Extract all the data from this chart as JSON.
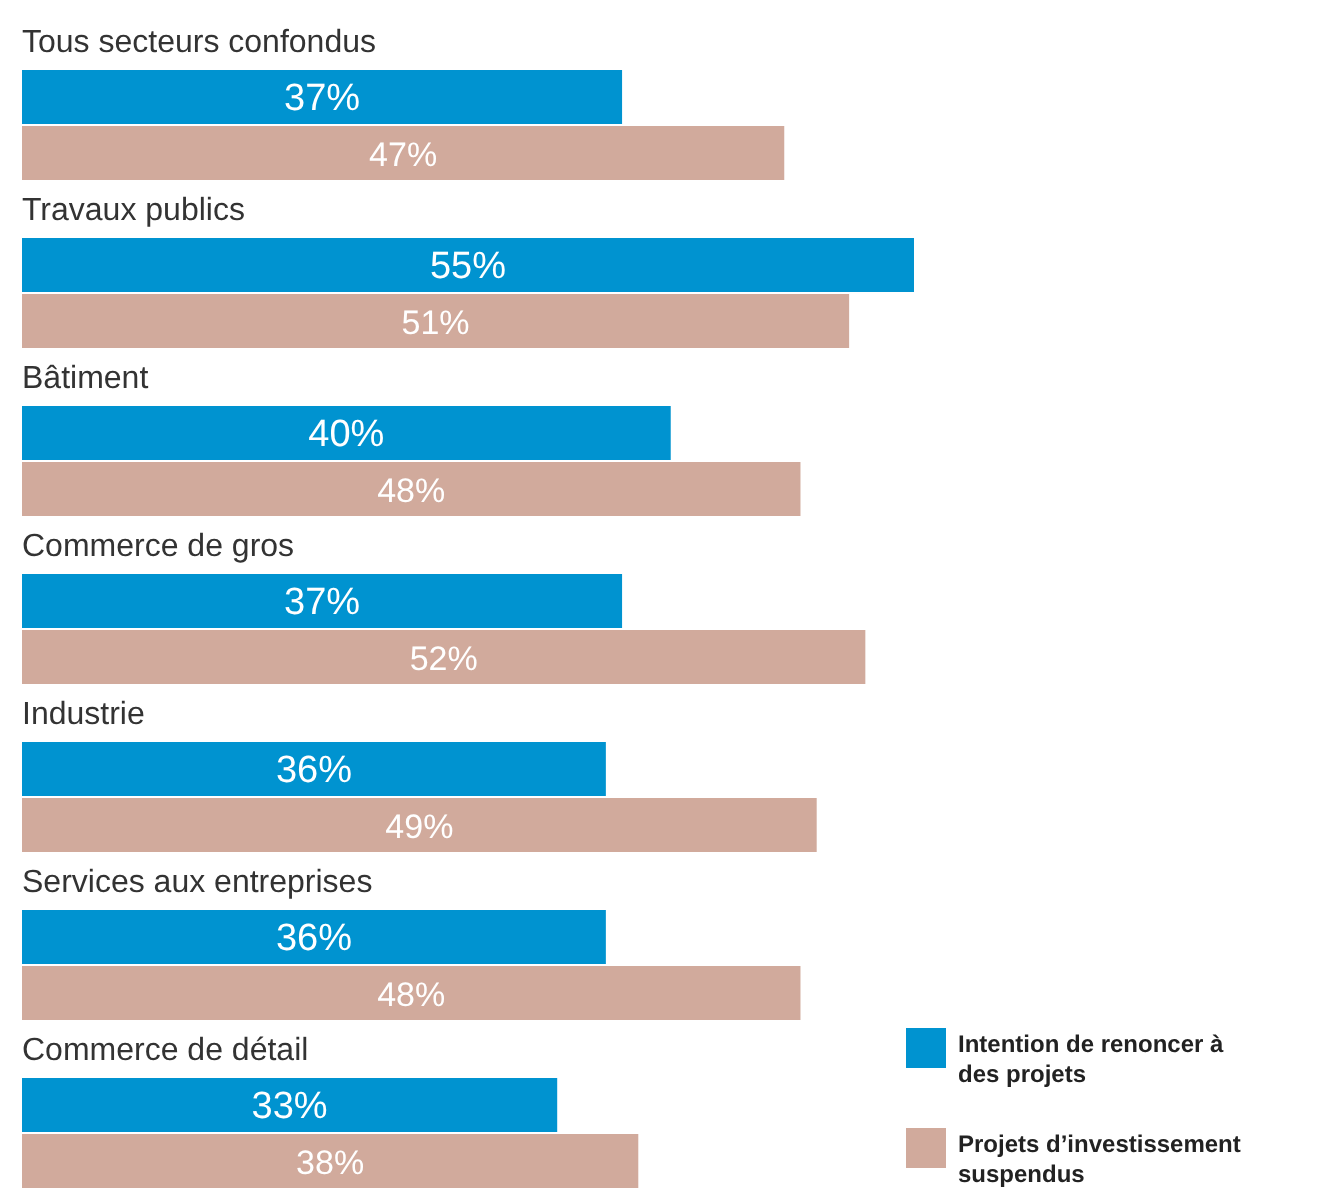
{
  "chart_data": {
    "type": "bar",
    "orientation": "horizontal",
    "legend": "bottom right",
    "categories": [
      "Tous secteurs confondus",
      "Travaux publics",
      "Bâtiment",
      "Commerce de gros",
      "Industrie",
      "Services aux entreprises",
      "Commerce de détail"
    ],
    "series": [
      {
        "name": "Intention de renoncer à des projets",
        "color": "#0093d0",
        "values": [
          37,
          55,
          40,
          37,
          36,
          36,
          33
        ],
        "value_labels": [
          "37%",
          "55%",
          "40%",
          "37%",
          "36%",
          "36%",
          "33%"
        ]
      },
      {
        "name": "Projets d’investissement suspendus",
        "color": "#d1aa9c",
        "values": [
          47,
          51,
          48,
          52,
          49,
          48,
          38
        ],
        "value_labels": [
          "47%",
          "51%",
          "48%",
          "52%",
          "49%",
          "48%",
          "38%"
        ]
      }
    ]
  }
}
